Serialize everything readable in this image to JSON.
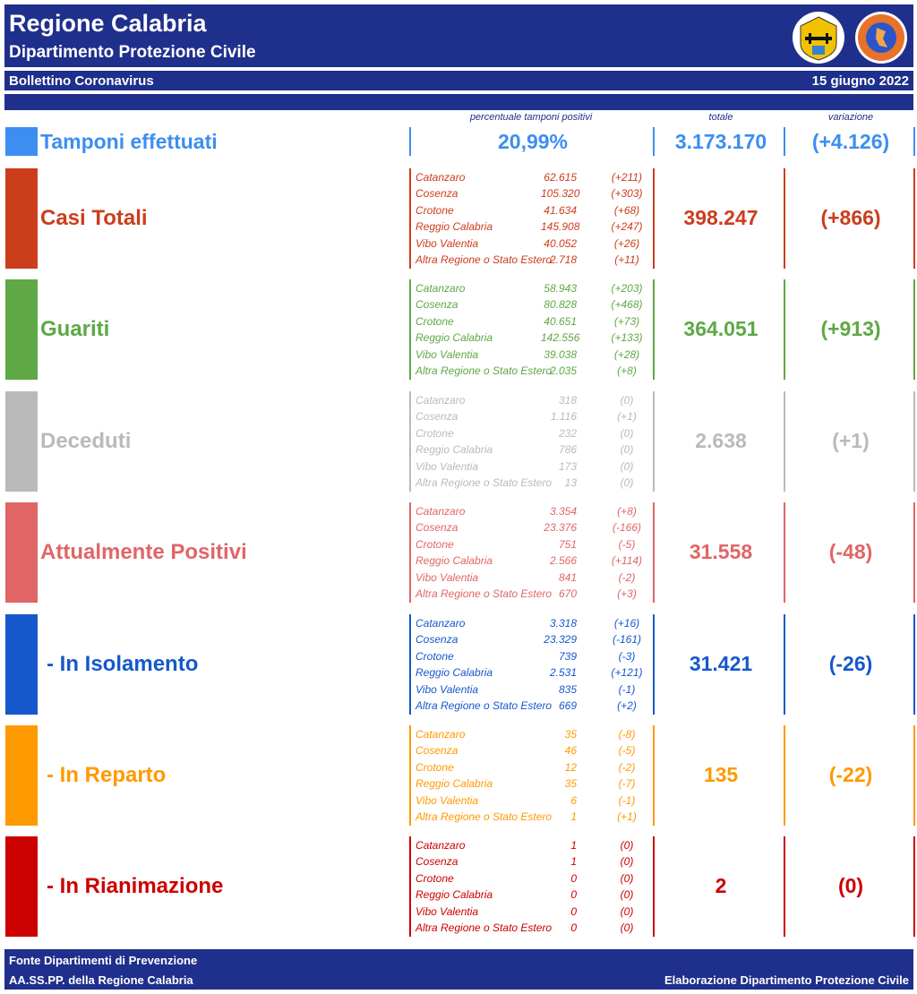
{
  "header": {
    "title": "Regione Calabria",
    "subtitle": "Dipartimento Protezione Civile",
    "bulletin": "Bollettino Coronavirus",
    "date": "15 giugno 2022"
  },
  "columns": {
    "pct": "percentuale tamponi positivi",
    "total": "totale",
    "variation": "variazione"
  },
  "tamponi": {
    "label": "Tamponi effettuati",
    "pct": "20,99%",
    "total": "3.173.170",
    "variation": "(+4.126)",
    "color": "#3c8ef2"
  },
  "provinces": [
    "Catanzaro",
    "Cosenza",
    "Crotone",
    "Reggio Calabria",
    "Vibo Valentia",
    "Altra Regione o Stato Estero"
  ],
  "rows": [
    {
      "label": "Casi Totali",
      "color": "#cc3d1c",
      "total": "398.247",
      "variation": "(+866)",
      "values": [
        "62.615",
        "105.320",
        "41.634",
        "145.908",
        "40.052",
        "2.718"
      ],
      "variations": [
        "(+211)",
        "(+303)",
        "(+68)",
        "(+247)",
        "(+26)",
        "(+11)"
      ]
    },
    {
      "label": "Guariti",
      "color": "#5ea845",
      "total": "364.051",
      "variation": "(+913)",
      "values": [
        "58.943",
        "80.828",
        "40.651",
        "142.556",
        "39.038",
        "2.035"
      ],
      "variations": [
        "(+203)",
        "(+468)",
        "(+73)",
        "(+133)",
        "(+28)",
        "(+8)"
      ]
    },
    {
      "label": "Deceduti",
      "color": "#bababa",
      "total": "2.638",
      "variation": "(+1)",
      "values": [
        "318",
        "1.116",
        "232",
        "786",
        "173",
        "13"
      ],
      "variations": [
        "(0)",
        "(+1)",
        "(0)",
        "(0)",
        "(0)",
        "(0)"
      ]
    },
    {
      "label": "Attualmente Positivi",
      "color": "#e06666",
      "total": "31.558",
      "variation": "(-48)",
      "values": [
        "3.354",
        "23.376",
        "751",
        "2.566",
        "841",
        "670"
      ],
      "variations": [
        "(+8)",
        "(-166)",
        "(-5)",
        "(+114)",
        "(-2)",
        "(+3)"
      ]
    },
    {
      "label": "- In Isolamento",
      "color": "#1558cc",
      "total": "31.421",
      "variation": "(-26)",
      "values": [
        "3.318",
        "23.329",
        "739",
        "2.531",
        "835",
        "669"
      ],
      "variations": [
        "(+16)",
        "(-161)",
        "(-3)",
        "(+121)",
        "(-1)",
        "(+2)"
      ]
    },
    {
      "label": "- In Reparto",
      "color": "#ff9900",
      "total": "135",
      "variation": "(-22)",
      "values": [
        "35",
        "46",
        "12",
        "35",
        "6",
        "1"
      ],
      "variations": [
        "(-8)",
        "(-5)",
        "(-2)",
        "(-7)",
        "(-1)",
        "(+1)"
      ]
    },
    {
      "label": "- In Rianimazione",
      "color": "#cc0000",
      "total": "2",
      "variation": "(0)",
      "values": [
        "1",
        "1",
        "0",
        "0",
        "0",
        "0"
      ],
      "variations": [
        "(0)",
        "(0)",
        "(0)",
        "(0)",
        "(0)",
        "(0)"
      ]
    }
  ],
  "footer": {
    "source1": "Fonte Dipartimenti di Prevenzione",
    "source2": "AA.SS.PP.  della Regione Calabria",
    "credit": "Elaborazione Dipartimento Protezione Civile"
  }
}
